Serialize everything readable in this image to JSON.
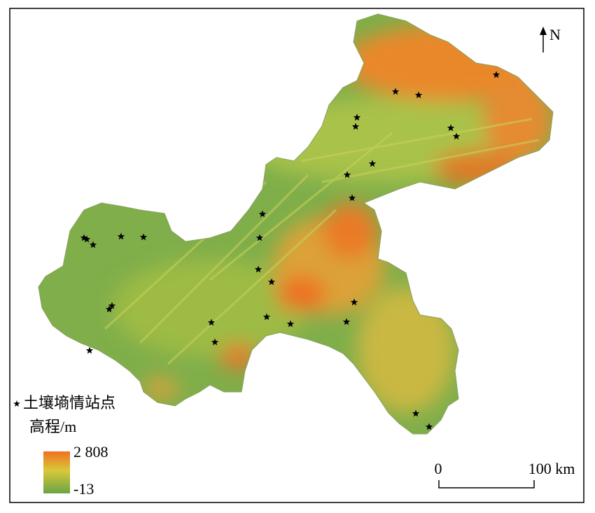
{
  "legend": {
    "station": "土壤墒情站点",
    "elevation_title": "高程/m",
    "max": "2 808",
    "min": "-13"
  },
  "scale_bar": {
    "start": "0",
    "end": "100 km"
  },
  "north": "N"
}
